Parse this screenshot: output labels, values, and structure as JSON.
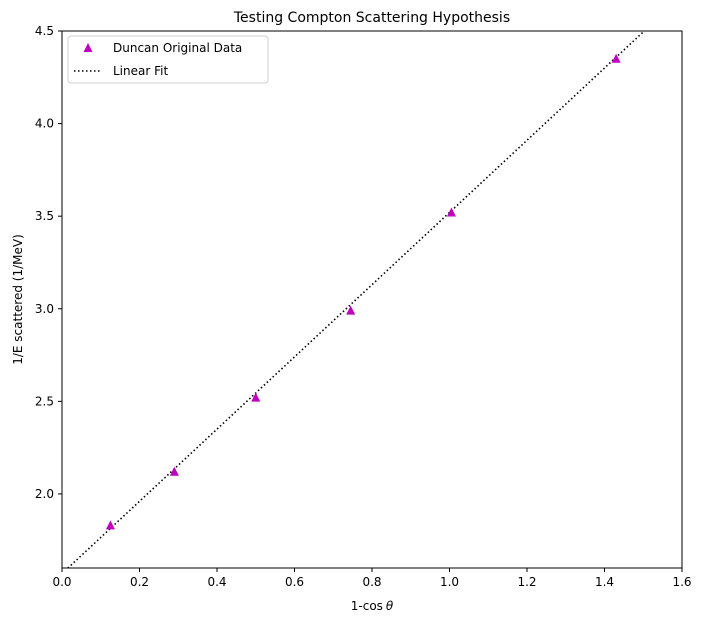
{
  "chart_data": {
    "type": "scatter",
    "title": "Testing Compton Scattering Hypothesis",
    "xlabel_prefix": "1-cos",
    "xlabel_symbol": "θ",
    "ylabel": "1/E scattered (1/MeV)",
    "xlim": [
      0.0,
      1.6
    ],
    "ylim": [
      1.6,
      4.5
    ],
    "xticks": [
      0.0,
      0.2,
      0.4,
      0.6,
      0.8,
      1.0,
      1.2,
      1.4,
      1.6
    ],
    "xtick_labels": [
      "0.0",
      "0.2",
      "0.4",
      "0.6",
      "0.8",
      "1.0",
      "1.2",
      "1.4",
      "1.6"
    ],
    "yticks": [
      2.0,
      2.5,
      3.0,
      3.5,
      4.0,
      4.5
    ],
    "ytick_labels": [
      "2.0",
      "2.5",
      "3.0",
      "3.5",
      "4.0",
      "4.5"
    ],
    "grid": false,
    "legend_position": "top-left",
    "series": [
      {
        "name": "Duncan Original Data",
        "kind": "marker",
        "marker": "triangle-up",
        "color": "#bf00bf",
        "x": [
          0.125,
          0.29,
          0.5,
          0.745,
          1.005,
          1.43
        ],
        "y": [
          1.83,
          2.12,
          2.52,
          2.99,
          3.52,
          4.35
        ]
      },
      {
        "name": "Linear Fit",
        "kind": "line",
        "style": "dotted",
        "color": "#000000",
        "x": [
          0.0,
          1.6
        ],
        "y": [
          1.57,
          4.69
        ]
      }
    ]
  }
}
